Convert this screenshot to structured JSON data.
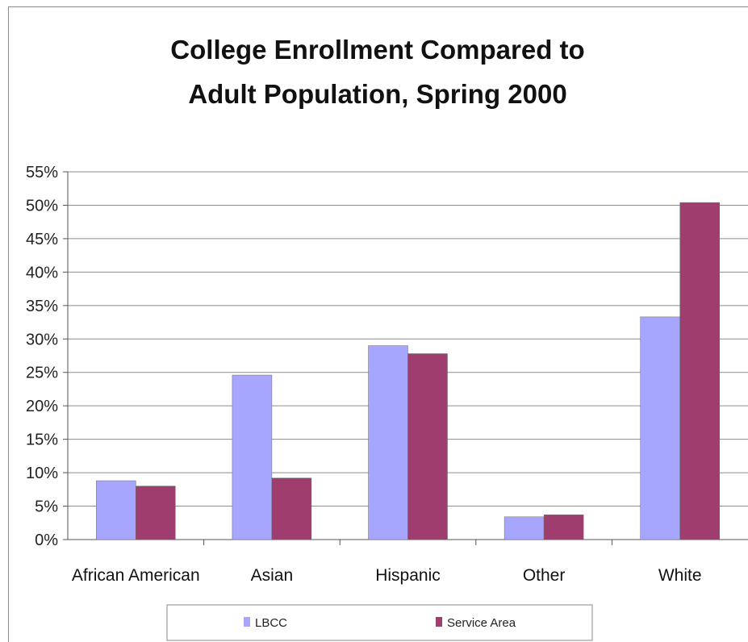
{
  "chart_data": {
    "type": "bar",
    "title": [
      "College Enrollment Compared to",
      "Adult Population, Spring 2000"
    ],
    "xlabel": "",
    "ylabel": "",
    "categories": [
      "African American",
      "Asian",
      "Hispanic",
      "Other",
      "White"
    ],
    "series": [
      {
        "name": "LBCC",
        "color": "#a6a6ff",
        "values": [
          8.8,
          24.6,
          29.0,
          3.4,
          33.3
        ]
      },
      {
        "name": "Service Area",
        "color": "#9e3d6e",
        "values": [
          8.0,
          9.2,
          27.8,
          3.7,
          50.4
        ]
      }
    ],
    "ylim": [
      0,
      55
    ],
    "yticks": [
      0,
      5,
      10,
      15,
      20,
      25,
      30,
      35,
      40,
      45,
      50,
      55
    ],
    "ytick_format": "percent",
    "grid": true,
    "legend": "bottom"
  }
}
